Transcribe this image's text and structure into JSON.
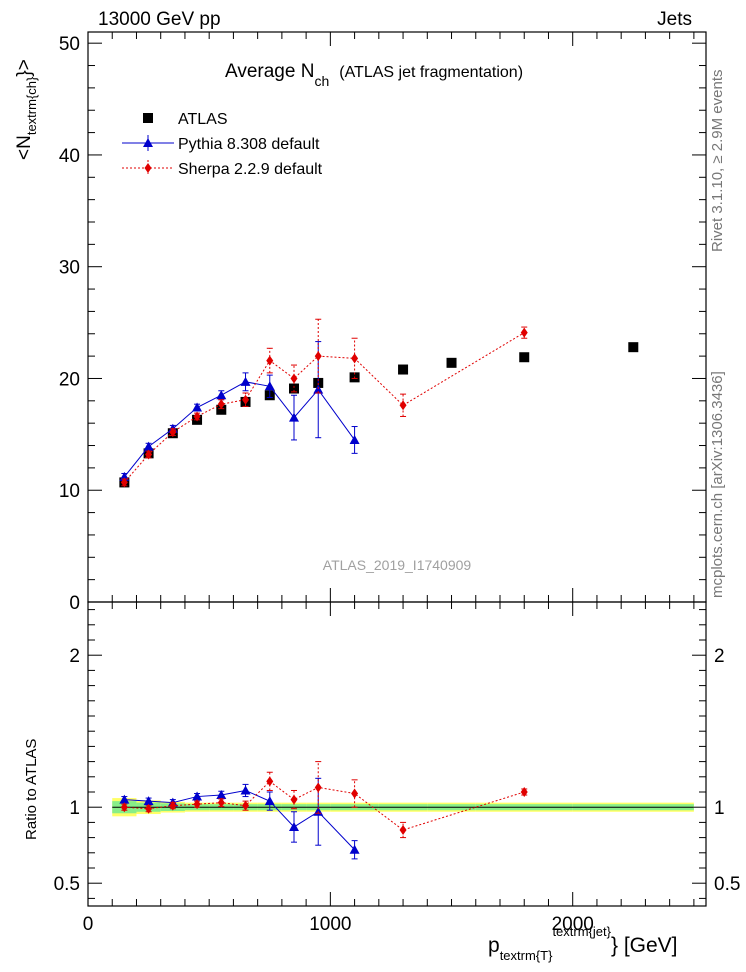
{
  "header": {
    "left": "13000 GeV pp",
    "right": "Jets"
  },
  "side_text": {
    "rivet": "Rivet 3.1.10, ≥ 2.9M events",
    "mcplots": "mcplots.cern.ch [arXiv:1306.3436]"
  },
  "chart_data": {
    "type": "scatter",
    "title": "Average N",
    "title_sub": "ch",
    "title_suffix": "(ATLAS jet fragmentation)",
    "analysis_id": "ATLAS_2019_I1740909",
    "xlabel": "p",
    "xlabel_sub": "textrm{T}",
    "xlabel_sup": "textrm{jet}",
    "xlabel_unit": "} [GeV]",
    "ylabel": "<N",
    "ylabel_sub": "textrm{ch}",
    "ylabel_suffix": "}>",
    "ratio_ylabel": "Ratio to ATLAS",
    "xlim": [
      0,
      2550
    ],
    "ylim": [
      0,
      51
    ],
    "ratio_ylim": [
      0.35,
      2.35
    ],
    "x_ticks": [
      0,
      1000,
      2000
    ],
    "x_tick_labels": [
      "0",
      "1000",
      "2000"
    ],
    "y_ticks": [
      0,
      10,
      20,
      30,
      40,
      50
    ],
    "y_tick_labels": [
      "0",
      "10",
      "20",
      "30",
      "40",
      "50"
    ],
    "ratio_ticks": [
      0.5,
      1,
      2
    ],
    "ratio_tick_labels": [
      "0.5",
      "1",
      "2"
    ],
    "series": [
      {
        "name": "ATLAS",
        "marker": "square",
        "color": "#000000",
        "x": [
          150,
          250,
          350,
          450,
          550,
          650,
          750,
          850,
          950,
          1100,
          1300,
          1500,
          1800,
          2250
        ],
        "y": [
          10.7,
          13.3,
          15.1,
          16.3,
          17.2,
          17.9,
          18.5,
          19.1,
          19.6,
          20.1,
          20.8,
          21.4,
          21.9,
          22.8
        ],
        "xerr": [
          50,
          50,
          50,
          50,
          50,
          50,
          50,
          50,
          50,
          100,
          100,
          100,
          200,
          250
        ],
        "ratio_band_inner": [
          0.04,
          0.03,
          0.025,
          0.02,
          0.02,
          0.02,
          0.02,
          0.02,
          0.02,
          0.02,
          0.02,
          0.02,
          0.02,
          0.02
        ],
        "ratio_band_outer": [
          0.06,
          0.045,
          0.035,
          0.03,
          0.03,
          0.03,
          0.03,
          0.03,
          0.03,
          0.03,
          0.03,
          0.03,
          0.03,
          0.03
        ]
      },
      {
        "name": "Pythia 8.308 default",
        "marker": "triangle",
        "line": "solid",
        "color": "#0000cc",
        "x": [
          150,
          250,
          350,
          450,
          550,
          650,
          750,
          850,
          950,
          1100
        ],
        "y": [
          11.2,
          13.9,
          15.5,
          17.4,
          18.5,
          19.7,
          19.3,
          16.5,
          19.0,
          14.5
        ],
        "yerr": [
          0.3,
          0.3,
          0.3,
          0.3,
          0.4,
          0.8,
          1.0,
          2.0,
          4.3,
          1.2
        ],
        "ratio": [
          1.05,
          1.04,
          1.03,
          1.07,
          1.08,
          1.11,
          1.04,
          0.87,
          0.97,
          0.72
        ],
        "ratio_err": [
          0.02,
          0.02,
          0.02,
          0.02,
          0.025,
          0.04,
          0.06,
          0.1,
          0.22,
          0.06
        ]
      },
      {
        "name": "Sherpa 2.2.9 default",
        "marker": "diamond",
        "line": "dotted",
        "color": "#e00000",
        "x": [
          150,
          250,
          350,
          450,
          550,
          650,
          750,
          850,
          950,
          1100,
          1300,
          1800
        ],
        "y": [
          10.7,
          13.2,
          15.2,
          16.6,
          17.7,
          18.1,
          21.6,
          20.0,
          22.0,
          21.8,
          17.6,
          24.1
        ],
        "yerr": [
          0.3,
          0.3,
          0.3,
          0.3,
          0.4,
          0.6,
          1.1,
          1.2,
          3.3,
          1.8,
          1.0,
          0.5
        ],
        "ratio": [
          1.0,
          0.99,
          1.01,
          1.02,
          1.03,
          1.01,
          1.17,
          1.05,
          1.13,
          1.09,
          0.85,
          1.1
        ],
        "ratio_err": [
          0.02,
          0.02,
          0.02,
          0.02,
          0.025,
          0.03,
          0.06,
          0.06,
          0.17,
          0.09,
          0.05,
          0.02
        ]
      }
    ],
    "legend_position": "top-left"
  }
}
